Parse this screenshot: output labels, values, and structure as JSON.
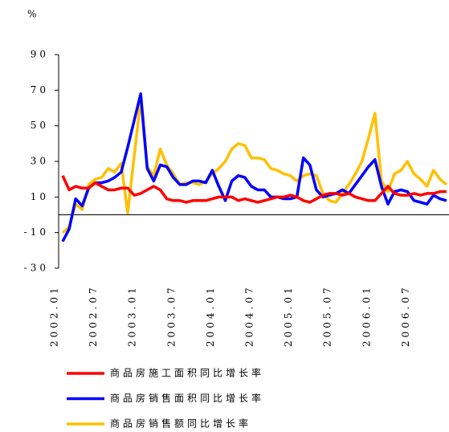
{
  "chart_data": {
    "type": "line",
    "y_label": "%",
    "categories": [
      "2002.01",
      null,
      null,
      null,
      null,
      null,
      "2002.07",
      null,
      null,
      null,
      null,
      null,
      "2003.01",
      null,
      null,
      null,
      null,
      null,
      "2003.07",
      null,
      null,
      null,
      null,
      null,
      "2004.01",
      null,
      null,
      null,
      null,
      null,
      "2004.07",
      null,
      null,
      null,
      null,
      null,
      "2005.01",
      null,
      null,
      null,
      null,
      null,
      "2005.07",
      null,
      null,
      null,
      null,
      null,
      "2006.01",
      null,
      null,
      null,
      null,
      null,
      "2006.07",
      null,
      null,
      null,
      null,
      null
    ],
    "series": [
      {
        "name": "商品房施工面积同比增长率",
        "color": "#ff0000",
        "values": [
          22,
          14,
          16,
          15,
          15,
          18,
          16,
          14,
          14,
          15,
          15,
          11,
          12,
          14,
          16,
          14,
          9,
          8,
          8,
          7,
          8,
          8,
          8,
          9,
          10,
          10,
          10,
          8,
          9,
          8,
          7,
          8,
          9,
          10,
          10,
          11,
          10,
          8,
          7,
          9,
          11,
          12,
          12,
          11,
          12,
          10,
          9,
          8,
          8,
          12,
          16,
          12,
          11,
          11,
          12,
          11,
          12,
          12,
          13,
          13
        ]
      },
      {
        "name": "商品房销售面积同比增长率",
        "color": "#0000ff",
        "values": [
          -15,
          -8,
          9,
          5,
          15,
          18,
          18,
          19,
          21,
          24,
          38,
          53,
          68,
          26,
          19,
          28,
          27,
          21,
          17,
          17,
          19,
          19,
          18,
          25,
          16,
          8,
          19,
          22,
          21,
          16,
          14,
          14,
          10,
          10,
          9,
          9,
          10,
          32,
          28,
          14,
          10,
          11,
          12,
          14,
          12,
          17,
          22,
          27,
          31,
          16,
          6,
          13,
          14,
          13,
          8,
          7,
          6,
          11,
          9,
          8
        ]
      },
      {
        "name": "商品房销售额同比增长率",
        "color": "#ffc000",
        "values": [
          -10,
          -7,
          6,
          3,
          17,
          20,
          21,
          26,
          24,
          29,
          1,
          33,
          65,
          27,
          22,
          37,
          28,
          23,
          17,
          18,
          18,
          17,
          19,
          23,
          26,
          30,
          37,
          40,
          39,
          32,
          32,
          31,
          26,
          25,
          23,
          22,
          19,
          22,
          23,
          22,
          12,
          8,
          7,
          12,
          17,
          23,
          30,
          43,
          57,
          19,
          13,
          23,
          25,
          30,
          23,
          20,
          16,
          25,
          20,
          17
        ]
      }
    ],
    "ylim": [
      -30,
      90
    ],
    "yticks": [
      -30,
      -10,
      10,
      30,
      50,
      70,
      90
    ]
  }
}
